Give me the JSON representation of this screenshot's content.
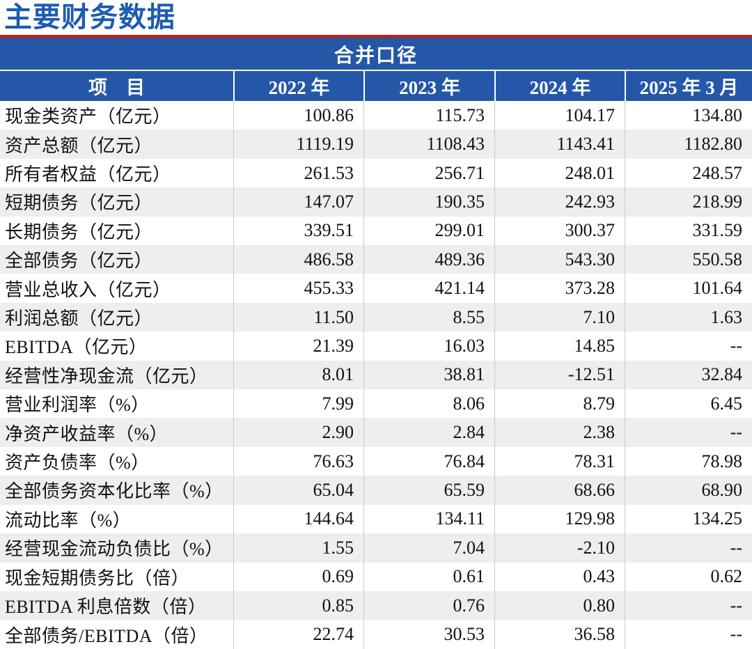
{
  "page": {
    "title": "主要财务数据"
  },
  "colors": {
    "title_blue": "#1c5cb0",
    "header_blue": "#2457a7",
    "rule_red": "#a02c28",
    "stripe_gray": "#efeeed",
    "separator_gray": "#c9c9c9",
    "header_text": "#ffffff",
    "text": "#111111"
  },
  "table": {
    "caption": "合并口径",
    "columns": [
      "项　目",
      "2022 年",
      "2023 年",
      "2024 年",
      "2025 年 3 月"
    ],
    "rows": [
      {
        "label": "现金类资产（亿元）",
        "values": [
          "100.86",
          "115.73",
          "104.17",
          "134.80"
        ]
      },
      {
        "label": "资产总额（亿元）",
        "values": [
          "1119.19",
          "1108.43",
          "1143.41",
          "1182.80"
        ]
      },
      {
        "label": "所有者权益（亿元）",
        "values": [
          "261.53",
          "256.71",
          "248.01",
          "248.57"
        ]
      },
      {
        "label": "短期债务（亿元）",
        "values": [
          "147.07",
          "190.35",
          "242.93",
          "218.99"
        ]
      },
      {
        "label": "长期债务（亿元）",
        "values": [
          "339.51",
          "299.01",
          "300.37",
          "331.59"
        ]
      },
      {
        "label": "全部债务（亿元）",
        "values": [
          "486.58",
          "489.36",
          "543.30",
          "550.58"
        ]
      },
      {
        "label": "营业总收入（亿元）",
        "values": [
          "455.33",
          "421.14",
          "373.28",
          "101.64"
        ]
      },
      {
        "label": "利润总额（亿元）",
        "values": [
          "11.50",
          "8.55",
          "7.10",
          "1.63"
        ]
      },
      {
        "label": "EBITDA（亿元）",
        "values": [
          "21.39",
          "16.03",
          "14.85",
          "--"
        ]
      },
      {
        "label": "经营性净现金流（亿元）",
        "values": [
          "8.01",
          "38.81",
          "-12.51",
          "32.84"
        ]
      },
      {
        "label": "营业利润率（%）",
        "values": [
          "7.99",
          "8.06",
          "8.79",
          "6.45"
        ]
      },
      {
        "label": "净资产收益率（%）",
        "values": [
          "2.90",
          "2.84",
          "2.38",
          "--"
        ]
      },
      {
        "label": "资产负债率（%）",
        "values": [
          "76.63",
          "76.84",
          "78.31",
          "78.98"
        ]
      },
      {
        "label": "全部债务资本化比率（%）",
        "values": [
          "65.04",
          "65.59",
          "68.66",
          "68.90"
        ]
      },
      {
        "label": "流动比率（%）",
        "values": [
          "144.64",
          "134.11",
          "129.98",
          "134.25"
        ]
      },
      {
        "label": "经营现金流动负债比（%）",
        "values": [
          "1.55",
          "7.04",
          "-2.10",
          "--"
        ]
      },
      {
        "label": "现金短期债务比（倍）",
        "values": [
          "0.69",
          "0.61",
          "0.43",
          "0.62"
        ]
      },
      {
        "label": "EBITDA 利息倍数（倍）",
        "values": [
          "0.85",
          "0.76",
          "0.80",
          "--"
        ]
      },
      {
        "label": "全部债务/EBITDA（倍）",
        "values": [
          "22.74",
          "30.53",
          "36.58",
          "--"
        ]
      }
    ]
  }
}
